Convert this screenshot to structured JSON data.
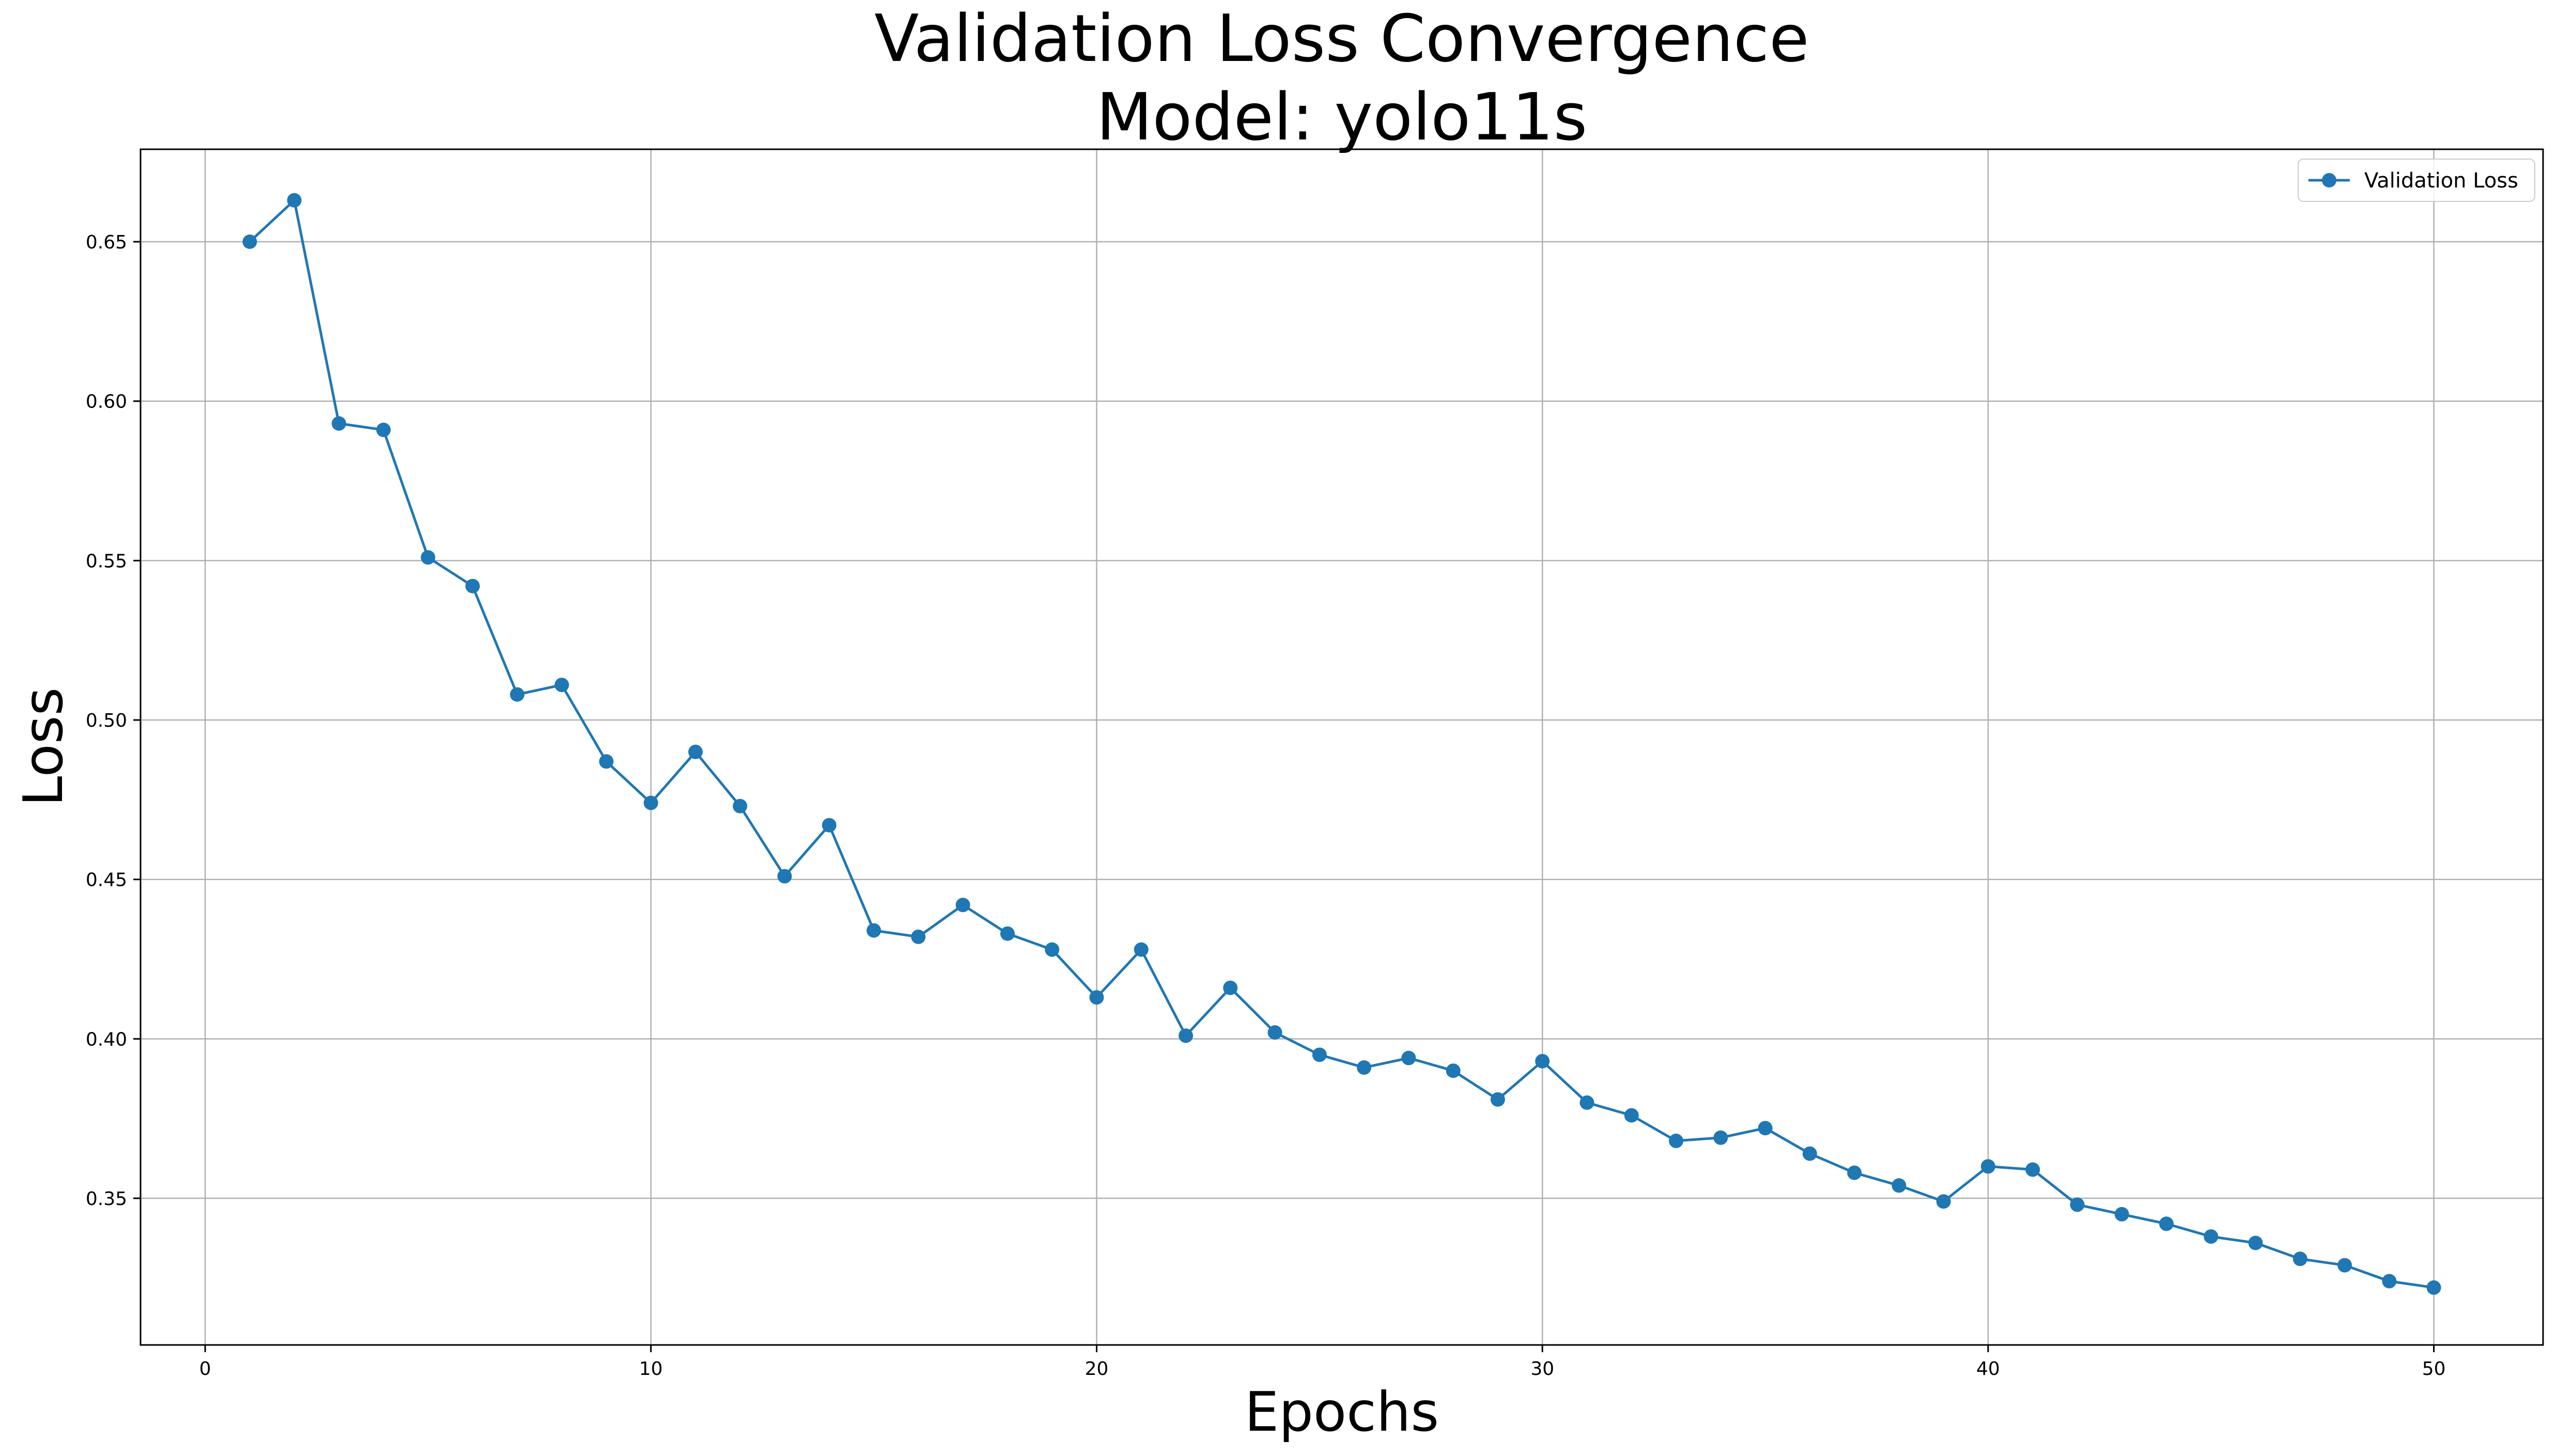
{
  "chart_data": {
    "type": "line",
    "title": "Validation Loss Convergence",
    "subtitle": "Model: yolo11s",
    "xlabel": "Epochs",
    "ylabel": "Loss",
    "xlim": [
      -1.45,
      52.45
    ],
    "ylim": [
      0.304,
      0.679
    ],
    "x_ticks": [
      0,
      10,
      20,
      30,
      40,
      50
    ],
    "y_ticks": [
      0.35,
      0.4,
      0.45,
      0.5,
      0.55,
      0.6,
      0.65
    ],
    "x_tick_labels": [
      "0",
      "10",
      "20",
      "30",
      "40",
      "50"
    ],
    "y_tick_labels": [
      "0.35",
      "0.40",
      "0.45",
      "0.50",
      "0.55",
      "0.60",
      "0.65"
    ],
    "grid": true,
    "legend_position": "top-right",
    "series": [
      {
        "name": "Validation Loss",
        "color": "#1f77b4",
        "marker": "circle",
        "x": [
          1,
          2,
          3,
          4,
          5,
          6,
          7,
          8,
          9,
          10,
          11,
          12,
          13,
          14,
          15,
          16,
          17,
          18,
          19,
          20,
          21,
          22,
          23,
          24,
          25,
          26,
          27,
          28,
          29,
          30,
          31,
          32,
          33,
          34,
          35,
          36,
          37,
          38,
          39,
          40,
          41,
          42,
          43,
          44,
          45,
          46,
          47,
          48,
          49,
          50
        ],
        "y": [
          0.65,
          0.663,
          0.593,
          0.591,
          0.551,
          0.542,
          0.508,
          0.511,
          0.487,
          0.474,
          0.49,
          0.473,
          0.451,
          0.467,
          0.434,
          0.432,
          0.442,
          0.433,
          0.428,
          0.413,
          0.428,
          0.401,
          0.416,
          0.402,
          0.395,
          0.391,
          0.394,
          0.39,
          0.381,
          0.393,
          0.38,
          0.376,
          0.368,
          0.369,
          0.372,
          0.364,
          0.358,
          0.354,
          0.349,
          0.36,
          0.359,
          0.348,
          0.345,
          0.342,
          0.338,
          0.336,
          0.331,
          0.329,
          0.324,
          0.322
        ]
      }
    ]
  }
}
